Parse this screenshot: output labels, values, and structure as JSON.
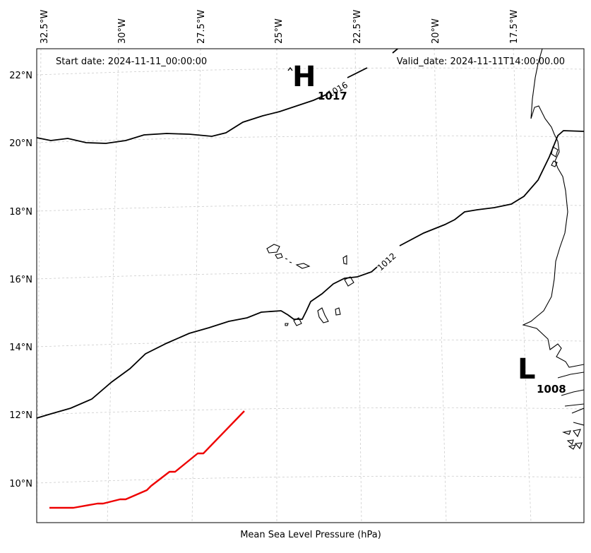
{
  "map": {
    "start_date": "Start date: 2024-11-11_00:00:00",
    "valid_date": "Valid_date: 2024-11-11T14:00:00.00",
    "caption": "Mean Sea Level Pressure (hPa)",
    "lon_labels": [
      "32.5°W",
      "30°W",
      "27.5°W",
      "25°W",
      "22.5°W",
      "20°W",
      "17.5°W"
    ],
    "lat_labels": [
      "22°N",
      "20°N",
      "18°N",
      "16°N",
      "14°N",
      "12°N",
      "10°N"
    ],
    "pressure_centers": [
      {
        "type": "H",
        "value": "1017"
      },
      {
        "type": "L",
        "value": "1008"
      }
    ],
    "contour_labels": [
      "1016",
      "1012"
    ],
    "colors": {
      "track": "#ee0000",
      "isobar": "#000000",
      "grid": "#cccccc"
    }
  }
}
